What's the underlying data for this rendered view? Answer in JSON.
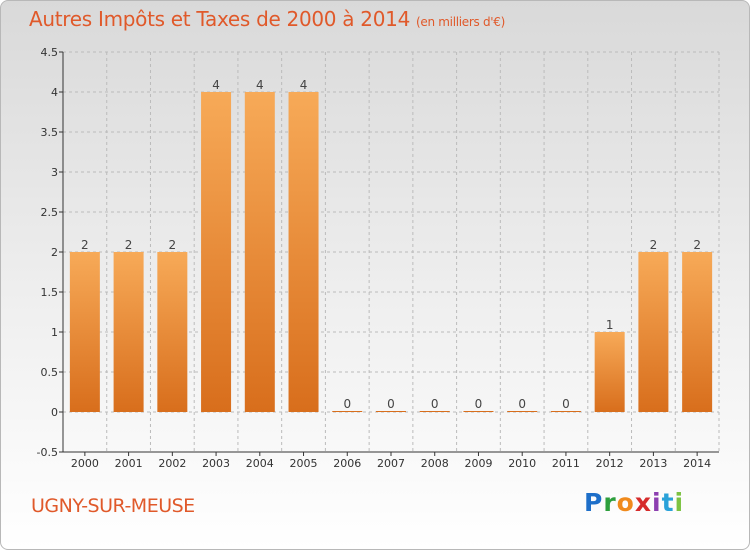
{
  "title": "Autres Impôts et Taxes de 2000 à 2014",
  "unit_note": "(en milliers d'€)",
  "town": "UGNY-SUR-MEUSE",
  "brand": {
    "logo": "Proxiti"
  },
  "colors": {
    "title": "#e0592a",
    "bar_top": "#f7aa58",
    "bar_bottom": "#d86e1c",
    "axis": "#333333",
    "grid": "#bbbbbb"
  },
  "chart_data": {
    "type": "bar",
    "categories": [
      "2000",
      "2001",
      "2002",
      "2003",
      "2004",
      "2005",
      "2006",
      "2007",
      "2008",
      "2009",
      "2010",
      "2011",
      "2012",
      "2013",
      "2014"
    ],
    "values": [
      2,
      2,
      2,
      4,
      4,
      4,
      0,
      0,
      0,
      0,
      0,
      0,
      1,
      2,
      2
    ],
    "data_labels": [
      "2",
      "2",
      "2",
      "4",
      "4",
      "4",
      "0",
      "0",
      "0",
      "0",
      "0",
      "0",
      "1",
      "2",
      "2"
    ],
    "y_ticks": [
      -0.5,
      0,
      0.5,
      1,
      1.5,
      2,
      2.5,
      3,
      3.5,
      4,
      4.5
    ],
    "y_tick_labels": [
      "-0.5",
      "0",
      "0.5",
      "1",
      "1.5",
      "2",
      "2.5",
      "3",
      "3.5",
      "4",
      "4.5"
    ],
    "ylim": [
      -0.5,
      4.5
    ],
    "grid": true,
    "xlabel": "",
    "ylabel": ""
  }
}
